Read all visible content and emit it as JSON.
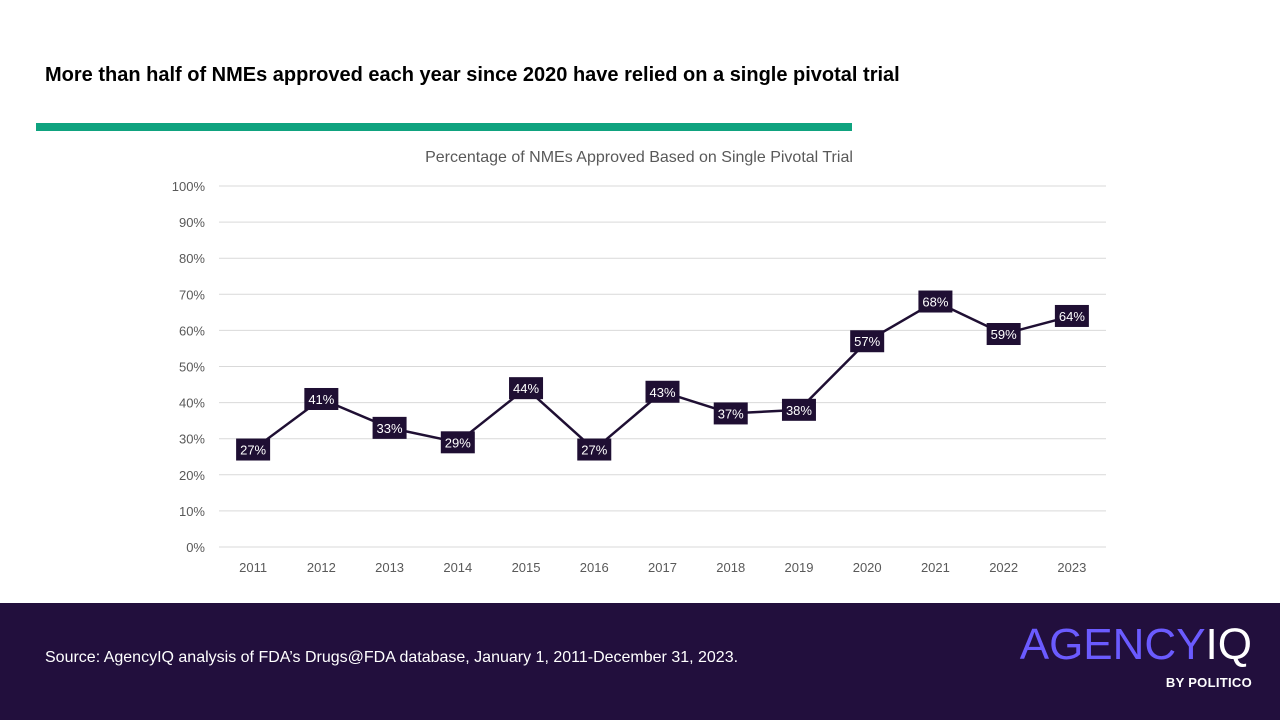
{
  "headline": "More than half of NMEs approved each year since 2020 have relied on a single pivotal trial",
  "colors": {
    "accent": "#0fa37f",
    "line": "#1f0f33",
    "footer_bg": "#220f3d",
    "logo_accent": "#6b5bff",
    "gridline": "#d9d9d9",
    "axis_text": "#595959"
  },
  "footer": {
    "source": "Source: AgencyIQ analysis of FDA’s Drugs@FDA database, January 1, 2011-December 31, 2023."
  },
  "logo": {
    "part1": "AGENCY",
    "part2": "IQ",
    "byline": "BY POLITICO"
  },
  "chart_data": {
    "type": "line",
    "title": "Percentage of NMEs Approved Based on Single Pivotal Trial",
    "xlabel": "",
    "ylabel": "",
    "categories": [
      "2011",
      "2012",
      "2013",
      "2014",
      "2015",
      "2016",
      "2017",
      "2018",
      "2019",
      "2020",
      "2021",
      "2022",
      "2023"
    ],
    "series": [
      {
        "name": "Percentage of NMEs Approved Based on Single Pivotal Trial",
        "values": [
          27,
          41,
          33,
          29,
          44,
          27,
          43,
          37,
          38,
          57,
          68,
          59,
          64
        ],
        "labels": [
          "27%",
          "41%",
          "33%",
          "29%",
          "44%",
          "27%",
          "43%",
          "37%",
          "38%",
          "57%",
          "68%",
          "59%",
          "64%"
        ]
      }
    ],
    "ylim": [
      0,
      100
    ],
    "yticks": [
      0,
      10,
      20,
      30,
      40,
      50,
      60,
      70,
      80,
      90,
      100
    ],
    "ytick_labels": [
      "0%",
      "10%",
      "20%",
      "30%",
      "40%",
      "50%",
      "60%",
      "70%",
      "80%",
      "90%",
      "100%"
    ],
    "grid": true,
    "legend": "none"
  }
}
